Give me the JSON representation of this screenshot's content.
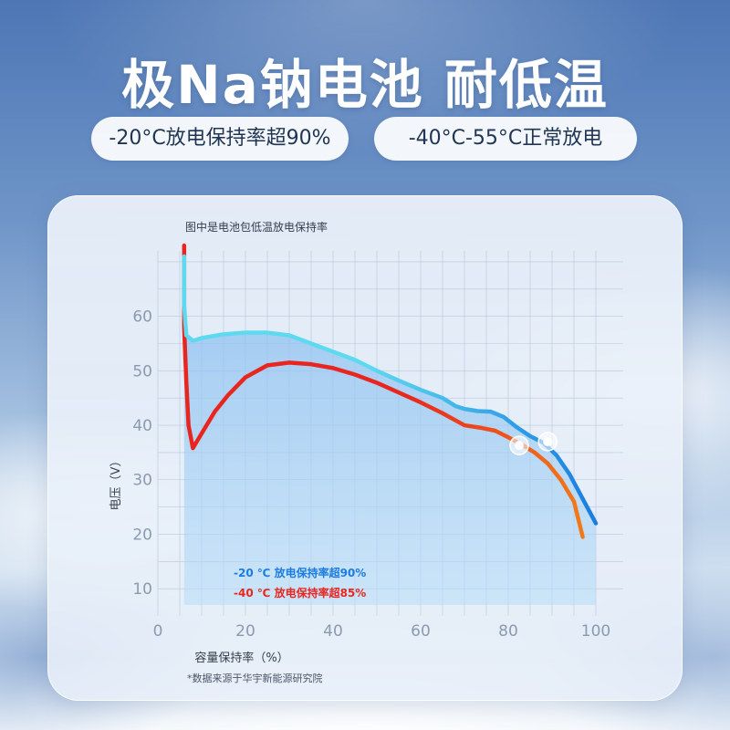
{
  "headline": "极Na钠电池 耐低温",
  "badges": {
    "left": "-20°C放电保持率超90%",
    "right": "-40°C-55°C正常放电"
  },
  "card": {
    "caption": "图中是电池包低温放电保持率",
    "footnote": "*数据来源于华宇新能源研究院"
  },
  "colors": {
    "series_20": "#1a7de0",
    "series_20_light": "#5dd9f0",
    "series_40": "#f07a1a",
    "series_40_light": "#e8261f",
    "fill": "#8fc8f4",
    "grid": "#b8c8dc",
    "axis_text": "#8a9bb0"
  },
  "chart_data": {
    "type": "line",
    "title": "图中是电池包低温放电保持率",
    "xlabel": "容量保持率（%）",
    "ylabel": "电压（V）",
    "xlim": [
      0,
      100
    ],
    "ylim": [
      5,
      72
    ],
    "xticks": [
      0,
      20,
      40,
      60,
      80,
      100
    ],
    "yticks": [
      10,
      20,
      30,
      40,
      50,
      60
    ],
    "grid": true,
    "legend_position": "bottom-left",
    "series": [
      {
        "name": "-20 ℃ 放电保持率超90%",
        "x": [
          6,
          6,
          6.5,
          8,
          10,
          15,
          20,
          25,
          30,
          35,
          40,
          45,
          50,
          55,
          60,
          65,
          68,
          70,
          73,
          76,
          79,
          82,
          85,
          88,
          91,
          94,
          97,
          100
        ],
        "y": [
          71,
          62,
          56.5,
          55.5,
          56.0,
          56.7,
          57.0,
          57.0,
          56.5,
          55.0,
          53.5,
          52.0,
          50.0,
          48.2,
          46.5,
          45.0,
          43.5,
          43.0,
          42.6,
          42.5,
          41.5,
          39.6,
          38.0,
          36.8,
          34.5,
          31.0,
          26.5,
          22.0
        ],
        "marker": {
          "x": 89,
          "y": 37.0
        }
      },
      {
        "name": "-40 ℃ 放电保持率超85%",
        "x": [
          6,
          6,
          6.5,
          7,
          8,
          10,
          13,
          16,
          20,
          25,
          30,
          35,
          40,
          45,
          50,
          55,
          60,
          65,
          70,
          74,
          77,
          80,
          83,
          86,
          89,
          92,
          95,
          97
        ],
        "y": [
          73,
          58,
          48,
          40,
          35.8,
          38.5,
          42.5,
          45.5,
          48.8,
          51.0,
          51.5,
          51.2,
          50.5,
          49.3,
          47.8,
          46.0,
          44.2,
          42.2,
          40.0,
          39.5,
          39.0,
          37.8,
          36.5,
          35.0,
          33.0,
          30.0,
          26.0,
          19.5
        ],
        "marker": {
          "x": 82.5,
          "y": 36.3
        }
      }
    ]
  }
}
